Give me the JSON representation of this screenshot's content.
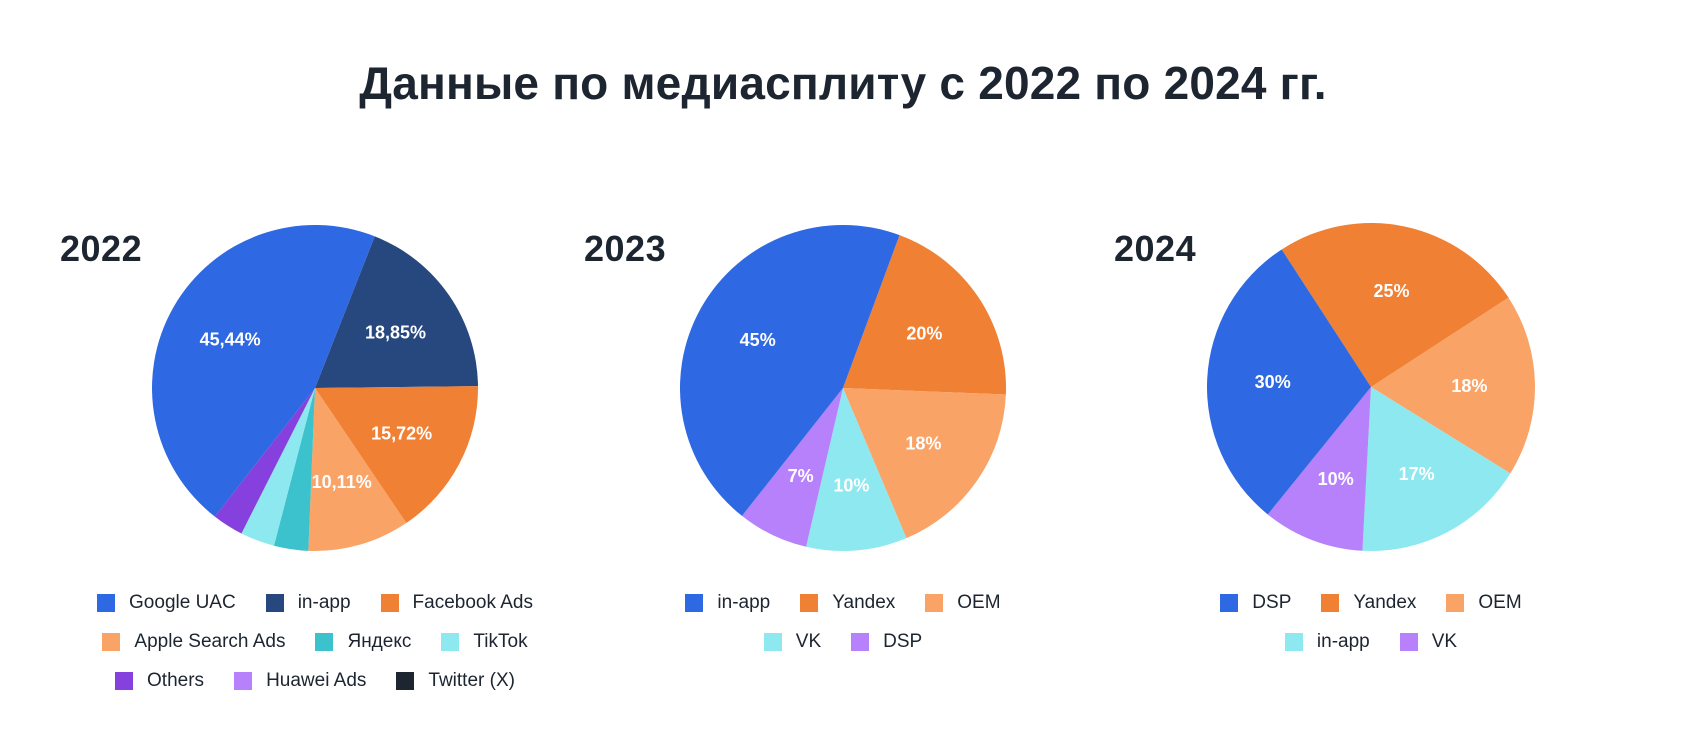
{
  "title": "Данные по медиасплиту с 2022 по 2024 гг.",
  "colors": {
    "text": "#1c2530",
    "blue": "#2e69e3",
    "navy": "#27477f",
    "orange": "#f08033",
    "light_orange": "#faa366",
    "teal": "#3bc2cc",
    "light_cyan": "#8ee8ef",
    "purple": "#8540de",
    "lavender": "#b681fb",
    "dark": "#1c2530"
  },
  "chart_data": [
    {
      "type": "pie",
      "title": "2022",
      "start_angle_deg": 21.5,
      "direction": "clockwise",
      "slices": [
        {
          "label": "in-app",
          "value": 18.85,
          "display": "18,85%",
          "color": "#27477f"
        },
        {
          "label": "Facebook Ads",
          "value": 15.72,
          "display": "15,72%",
          "color": "#f08033"
        },
        {
          "label": "Apple Search Ads",
          "value": 10.11,
          "display": "10,11%",
          "color": "#faa366"
        },
        {
          "label": "Яндекс",
          "value": 3.4,
          "display": "",
          "color": "#3bc2cc"
        },
        {
          "label": "TikTok",
          "value": 3.4,
          "display": "",
          "color": "#8ee8ef"
        },
        {
          "label": "Others",
          "value": 3.08,
          "display": "",
          "color": "#8540de"
        },
        {
          "label": "Google UAC",
          "value": 45.44,
          "display": "45,44%",
          "color": "#2e69e3"
        }
      ],
      "legend": [
        [
          {
            "label": "Google UAC",
            "color": "#2e69e3"
          },
          {
            "label": "in-app",
            "color": "#27477f"
          },
          {
            "label": "Facebook Ads",
            "color": "#f08033"
          }
        ],
        [
          {
            "label": "Apple Search Ads",
            "color": "#faa366"
          },
          {
            "label": "Яндекс",
            "color": "#3bc2cc"
          },
          {
            "label": "TikTok",
            "color": "#8ee8ef"
          }
        ],
        [
          {
            "label": "Others",
            "color": "#8540de"
          },
          {
            "label": "Huawei Ads",
            "color": "#b681fb"
          },
          {
            "label": "Twitter (X)",
            "color": "#1c2530"
          }
        ]
      ],
      "legend_placement": "bottom"
    },
    {
      "type": "pie",
      "title": "2023",
      "start_angle_deg": 20.3,
      "direction": "clockwise",
      "slices": [
        {
          "label": "Yandex",
          "value": 20,
          "display": "20%",
          "color": "#f08033"
        },
        {
          "label": "OEM",
          "value": 18,
          "display": "18%",
          "color": "#faa366"
        },
        {
          "label": "VK",
          "value": 10,
          "display": "10%",
          "color": "#8ee8ef"
        },
        {
          "label": "DSP",
          "value": 7,
          "display": "7%",
          "color": "#b681fb"
        },
        {
          "label": "in-app",
          "value": 45,
          "display": "45%",
          "color": "#2e69e3"
        }
      ],
      "legend": [
        [
          {
            "label": "in-app",
            "color": "#2e69e3"
          },
          {
            "label": "Yandex",
            "color": "#f08033"
          },
          {
            "label": "OEM",
            "color": "#faa366"
          }
        ],
        [
          {
            "label": "VK",
            "color": "#8ee8ef"
          },
          {
            "label": "DSP",
            "color": "#b681fb"
          }
        ]
      ],
      "legend_placement": "bottom"
    },
    {
      "type": "pie",
      "title": "2024",
      "start_angle_deg": -33,
      "direction": "clockwise",
      "slices": [
        {
          "label": "Yandex",
          "value": 25,
          "display": "25%",
          "color": "#f08033"
        },
        {
          "label": "OEM",
          "value": 18,
          "display": "18%",
          "color": "#faa366"
        },
        {
          "label": "in-app",
          "value": 17,
          "display": "17%",
          "color": "#8ee8ef"
        },
        {
          "label": "VK",
          "value": 10,
          "display": "10%",
          "color": "#b681fb"
        },
        {
          "label": "DSP",
          "value": 30,
          "display": "30%",
          "color": "#2e69e3"
        }
      ],
      "legend": [
        [
          {
            "label": "DSP",
            "color": "#2e69e3"
          },
          {
            "label": "Yandex",
            "color": "#f08033"
          },
          {
            "label": "OEM",
            "color": "#faa366"
          }
        ],
        [
          {
            "label": "in-app",
            "color": "#8ee8ef"
          },
          {
            "label": "VK",
            "color": "#b681fb"
          }
        ]
      ],
      "legend_placement": "bottom"
    }
  ]
}
